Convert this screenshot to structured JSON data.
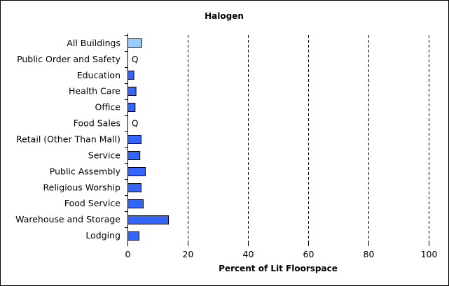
{
  "chart_data": {
    "type": "bar",
    "orientation": "horizontal",
    "title": "Halogen",
    "xlabel": "Percent of Lit Floorspace",
    "ylabel": "",
    "xlim": [
      0,
      100
    ],
    "xticks": [
      "0",
      "20",
      "40",
      "60",
      "80",
      "100"
    ],
    "grid": "vertical dashed",
    "categories": [
      "All Buildings",
      "Public Order and Safety",
      "Education",
      "Health Care",
      "Office",
      "Food Sales",
      "Retail (Other Than Mall)",
      "Service",
      "Public Assembly",
      "Religious Worship",
      "Food Service",
      "Warehouse and Storage",
      "Lodging"
    ],
    "values": [
      4.6,
      null,
      2.0,
      2.7,
      2.4,
      null,
      4.4,
      4.0,
      5.8,
      4.4,
      5.1,
      13.5,
      3.7
    ],
    "value_labels": [
      "",
      "Q",
      "",
      "",
      "",
      "Q",
      "",
      "",
      "",
      "",
      "",
      "",
      ""
    ],
    "colors": {
      "highlight": "#99ccff",
      "bar": "#3366ff",
      "outline": "#000000",
      "grid": "#000000"
    }
  }
}
